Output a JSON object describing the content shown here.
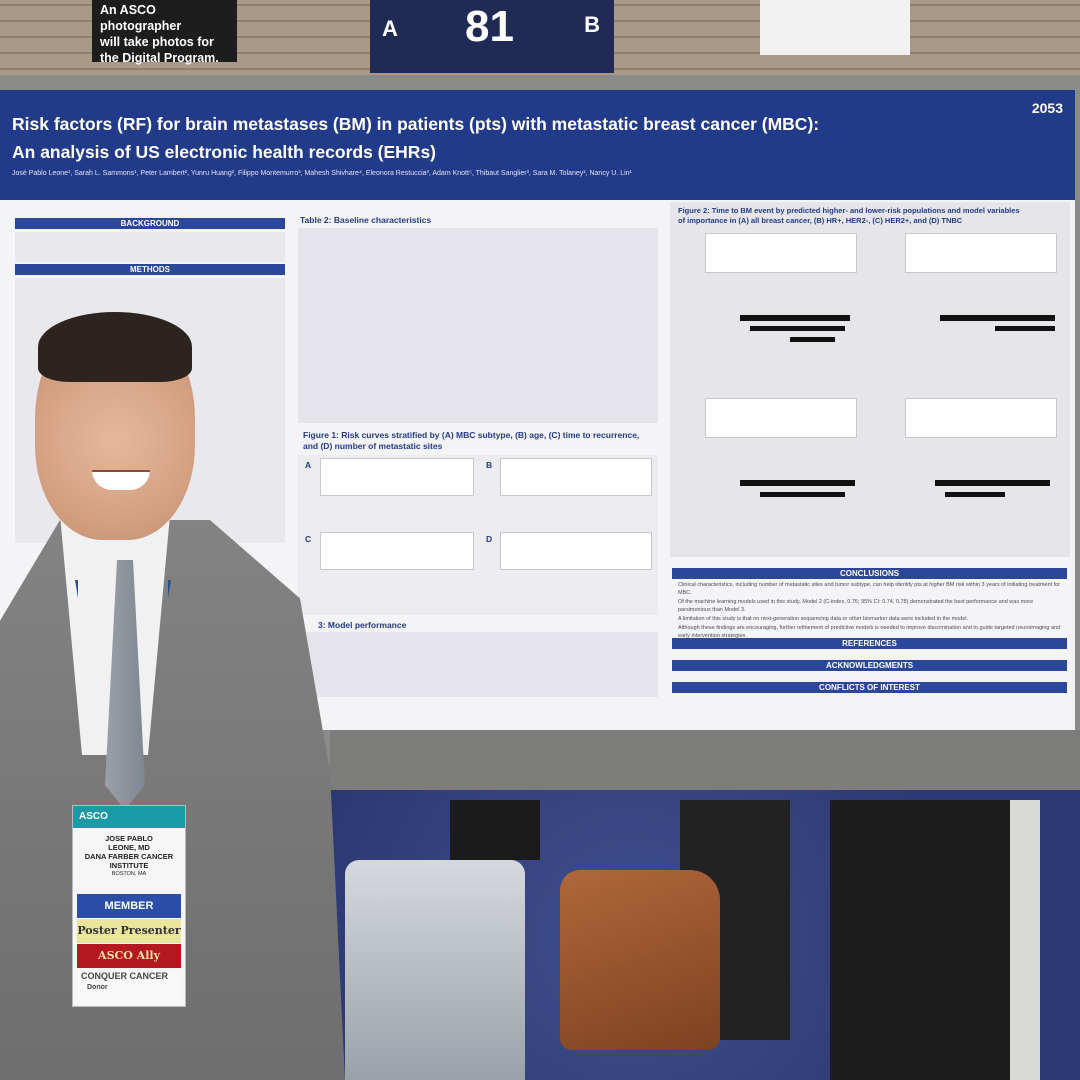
{
  "photo_sign": {
    "line1": "An ASCO photographer",
    "line2": "will take photos for",
    "line3": "the Digital Program."
  },
  "board_sign": {
    "left": "A",
    "number": "81",
    "right": "B"
  },
  "poster": {
    "number": "2053",
    "title_line1": "Risk factors (RF) for brain metastases (BM) in patients (pts) with metastatic breast cancer (MBC):",
    "title_line2": "An analysis of US electronic health records (EHRs)",
    "authors": "José Pablo Leone¹, Sarah L. Sammons¹, Peter Lambert², Yunru Huang², Filippo Montemurro³, Mahesh Shivhare⁴, Eleonora Restuccia³, Adam Knott⁵, Thibaut Sanglier³, Sara M. Tolaney¹, Nancy U. Lin¹",
    "sections": {
      "background": "BACKGROUND",
      "methods": "METHODS",
      "table2": "Table 2: Baseline characteristics",
      "figure1_line1": "Figure 1: Risk curves stratified by (A) MBC subtype, (B) age, (C) time to recurrence,",
      "figure1_line2": "and (D) number of metastatic sites",
      "table3": "3: Model performance",
      "figure2_line1": "Figure 2: Time to BM event by predicted higher- and lower-risk populations and model variables",
      "figure2_line2": "of importance in (A) all breast cancer, (B) HR+, HER2-, (C) HER2+, and (D) TNBC",
      "conclusions": "CONCLUSIONS",
      "references": "REFERENCES",
      "acknowledgments": "ACKNOWLEDGMENTS",
      "conflicts": "CONFLICTS OF INTEREST"
    },
    "panel_letters": [
      "A",
      "B",
      "C",
      "D"
    ],
    "conclusion_1": "Clinical characteristics, including number of metastatic sites and tumor subtype, can help identify pts at higher BM risk within 3 years of initiating treatment for MBC.",
    "conclusion_2": "Of the machine learning models used in this study, Model 2 (C-index, 0.76; 95% CI: 0.74, 0.78) demonstrated the best performance and was more parsimonious than Model 3.",
    "conclusion_3": "A limitation of this study is that no next-generation sequencing data or other biomarker data were included in the model.",
    "conclusion_4": "Although these findings are encouraging, further refinement of predictive models is needed to improve discrimination and to guide targeted neuroimaging and early intervention strategies."
  },
  "badge": {
    "brand": "ASCO",
    "name_line1": "JOSE PABLO",
    "name_line2": "LEONE, MD",
    "name_line3": "DANA FARBER CANCER",
    "name_line4": "INSTITUTE",
    "city": "BOSTON, MA",
    "ribbon_member": "MEMBER",
    "ribbon_poster": "Poster Presenter",
    "ribbon_ally": "ASCO Ally",
    "ribbon_conquer": "CONQUER CANCER",
    "ribbon_donor": "Donor"
  }
}
